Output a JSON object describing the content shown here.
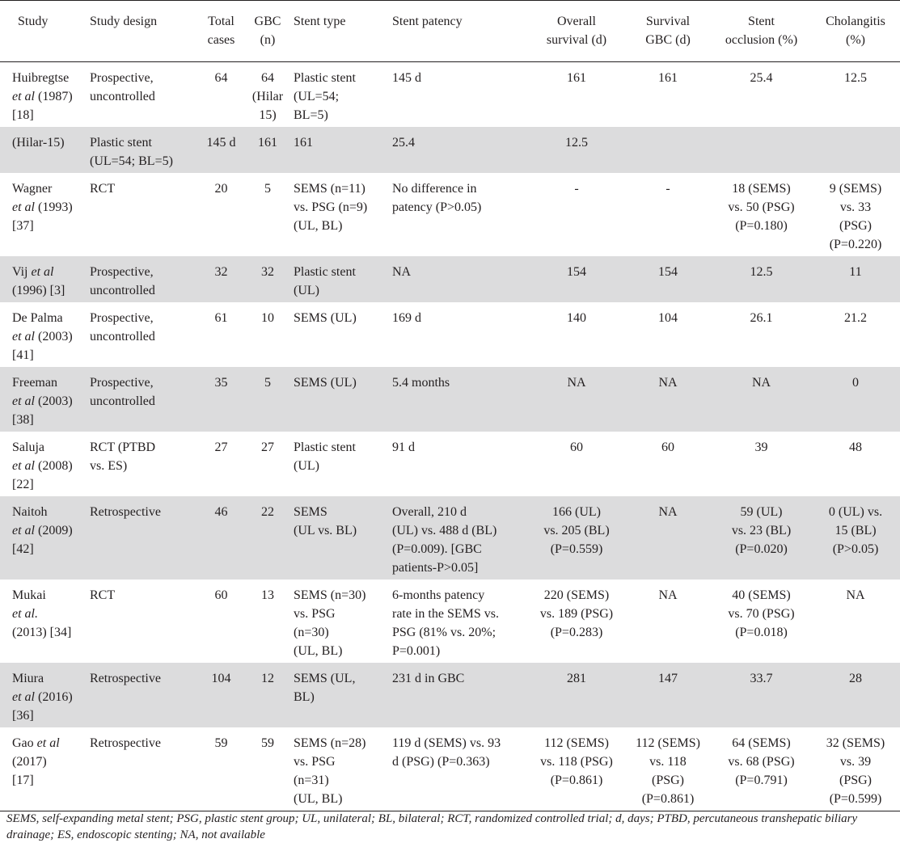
{
  "headers": {
    "study": "Study",
    "design": "Study design",
    "total": "Total\ncases",
    "gbc": "GBC\n(n)",
    "stent": "Stent type",
    "patency": "Stent patency",
    "os": "Overall\nsurvival (d)",
    "sgbc": "Survival\nGBC (d)",
    "occl": "Stent\nocclusion (%)",
    "chol": "Cholangitis\n(%)"
  },
  "rows": [
    {
      "study_pre": "Huibregtse\n",
      "study_em": "et al",
      "study_post": " (1987)\n[18]",
      "design": "Prospective,\nuncontrolled",
      "total": "64",
      "gbc": "64\n(Hilar\n15)",
      "stent": "Plastic stent\n(UL=54;\nBL=5)",
      "patency": "145 d",
      "os": "161",
      "sgbc": "161",
      "occl": "25.4",
      "chol": "12.5"
    },
    {
      "study_pre": "(Hilar-15)",
      "study_em": "",
      "study_post": "",
      "design": "Plastic stent\n(UL=54; BL=5)",
      "total": "145 d",
      "gbc": "161",
      "stent": "161",
      "patency": "25.4",
      "os": "12.5",
      "sgbc": "",
      "occl": "",
      "chol": ""
    },
    {
      "study_pre": "Wagner\n",
      "study_em": "et al",
      "study_post": " (1993)\n[37]",
      "design": " RCT",
      "total": "20",
      "gbc": "5",
      "stent": "SEMS (n=11)\nvs. PSG (n=9)\n(UL, BL)",
      "patency": "No difference in\npatency (P>0.05)",
      "os": "-",
      "sgbc": "-",
      "occl": "18 (SEMS)\nvs. 50 (PSG)\n(P=0.180)",
      "chol": "9 (SEMS)\nvs. 33\n(PSG)\n(P=0.220)"
    },
    {
      "study_pre": "Vij ",
      "study_em": "et al",
      "study_post": "\n(1996) [3]",
      "design": "Prospective,\nuncontrolled",
      "total": "32",
      "gbc": "32",
      "stent": "Plastic stent\n(UL)",
      "patency": "NA",
      "os": "154",
      "sgbc": "154",
      "occl": "12.5",
      "chol": "11"
    },
    {
      "study_pre": "De Palma\n",
      "study_em": "et al",
      "study_post": " (2003)\n[41]",
      "design": "Prospective,\nuncontrolled",
      "total": "61",
      "gbc": "10",
      "stent": "SEMS (UL)",
      "patency": "169 d",
      "os": "140",
      "sgbc": "104",
      "occl": "26.1",
      "chol": "21.2"
    },
    {
      "study_pre": "Freeman\n",
      "study_em": "et al",
      "study_post": " (2003)\n[38]",
      "design": "Prospective,\nuncontrolled",
      "total": "35",
      "gbc": "5",
      "stent": "SEMS (UL)",
      "patency": "5.4 months",
      "os": "NA",
      "sgbc": "NA",
      "occl": "NA",
      "chol": "0"
    },
    {
      "study_pre": "Saluja\n",
      "study_em": "et al",
      "study_post": " (2008)\n[22]",
      "design": "RCT (PTBD\nvs. ES)",
      "total": "27",
      "gbc": "27",
      "stent": "Plastic stent\n(UL)",
      "patency": "91 d",
      "os": "60",
      "sgbc": "60",
      "occl": "39",
      "chol": "48"
    },
    {
      "study_pre": "Naitoh\n",
      "study_em": "et al",
      "study_post": " (2009)\n[42]",
      "design": "Retrospective",
      "total": "46",
      "gbc": "22",
      "stent": "SEMS\n(UL vs. BL)",
      "patency": "Overall, 210 d\n(UL) vs. 488 d (BL)\n(P=0.009). [GBC\npatients-P>0.05]",
      "os": "166 (UL)\nvs. 205 (BL)\n(P=0.559)",
      "sgbc": "NA",
      "occl": "59 (UL)\nvs. 23 (BL)\n(P=0.020)",
      "chol": "0 (UL) vs.\n15 (BL)\n(P>0.05)"
    },
    {
      "study_pre": "Mukai\n ",
      "study_em": "et al.",
      "study_post": "\n(2013) [34]",
      "design": "RCT",
      "total": "60",
      "gbc": "13",
      "stent": "SEMS (n=30)\nvs. PSG\n(n=30)\n(UL, BL)",
      "patency": "6-months patency\nrate in the SEMS vs.\nPSG (81% vs. 20%;\nP=0.001)",
      "os": "220 (SEMS)\nvs. 189 (PSG)\n(P=0.283)",
      "sgbc": "NA",
      "occl": "40 (SEMS)\nvs. 70 (PSG)\n(P=0.018)",
      "chol": "NA"
    },
    {
      "study_pre": "Miura\n",
      "study_em": "et al",
      "study_post": " (2016)\n[36]",
      "design": "Retrospective",
      "total": "104",
      "gbc": "12",
      "stent": "SEMS (UL,\nBL)",
      "patency": "231 d in GBC",
      "os": "281",
      "sgbc": "147",
      "occl": "33.7",
      "chol": "28"
    },
    {
      "study_pre": "Gao ",
      "study_em": "et al",
      "study_post": "\n(2017)\n[17]",
      "design": "Retrospective",
      "total": "59",
      "gbc": "59",
      "stent": "SEMS (n=28)\nvs. PSG\n(n=31)\n(UL, BL)",
      "patency": "119 d (SEMS) vs. 93\nd (PSG) (P=0.363)",
      "os": "112 (SEMS)\nvs. 118 (PSG)\n(P=0.861)",
      "sgbc": "112 (SEMS)\nvs. 118\n(PSG)\n(P=0.861)",
      "occl": "64 (SEMS)\nvs. 68 (PSG)\n(P=0.791)",
      "chol": "32 (SEMS)\nvs. 39\n(PSG)\n(P=0.599)"
    }
  ],
  "footnote": "SEMS, self-expanding metal stent; PSG, plastic stent group; UL, unilateral; BL, bilateral; RCT, randomized controlled trial; d, days; PTBD, percutaneous transhepatic biliary drainage; ES, endoscopic stenting; NA, not available"
}
